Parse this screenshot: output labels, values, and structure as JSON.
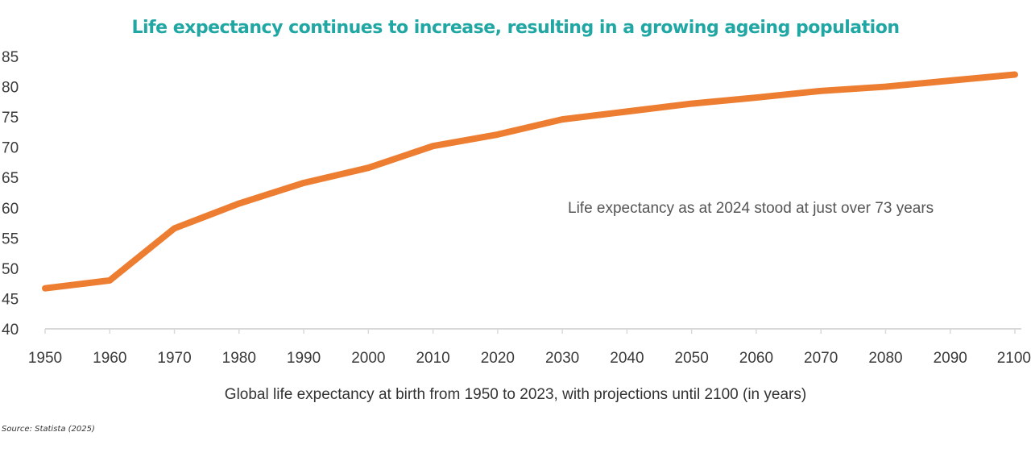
{
  "chart_data": {
    "type": "line",
    "title": "Life expectancy continues to increase, resulting in a growing ageing population",
    "xlabel": "Global life expectancy at birth from 1950 to 2023, with projections until 2100 (in years)",
    "ylabel": "",
    "x": [
      1950,
      1960,
      1970,
      1980,
      1990,
      2000,
      2010,
      2020,
      2030,
      2040,
      2050,
      2060,
      2070,
      2080,
      2090,
      2100
    ],
    "series": [
      {
        "values": [
          46.7,
          48.0,
          56.6,
          60.7,
          64.1,
          66.6,
          70.2,
          72.1,
          74.6,
          75.9,
          77.2,
          78.2,
          79.3,
          80.0,
          81.0,
          82.0
        ]
      }
    ],
    "ylim": [
      40,
      85
    ],
    "yticks": [
      40,
      45,
      50,
      55,
      60,
      65,
      70,
      75,
      80,
      85
    ],
    "xticks": [
      1950,
      1960,
      1970,
      1980,
      1990,
      2000,
      2010,
      2020,
      2030,
      2040,
      2050,
      2060,
      2070,
      2080,
      2090,
      2100
    ],
    "grid": false,
    "annotation": "Life expectancy as at 2024 stood at just over 73 years",
    "source": "Source: Statista (2025)",
    "colors": {
      "line": "#ed7d31",
      "title": "#20a7a4",
      "axis": "#d9d9d9"
    }
  }
}
